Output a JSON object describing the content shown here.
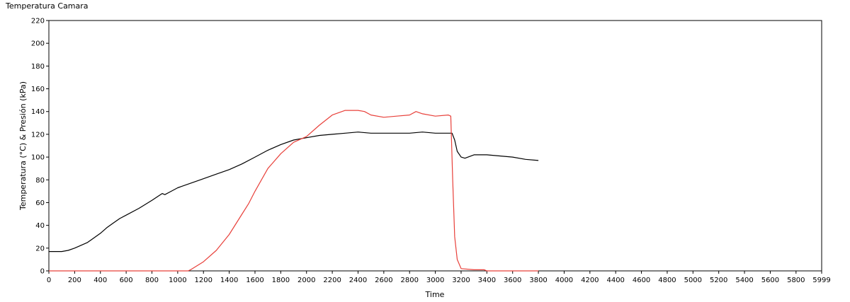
{
  "chart_data": {
    "type": "line",
    "title": "Temperatura Camara",
    "xlabel": "Time",
    "ylabel": "Temperatura (°C) & Presión (kPa)",
    "xlim": [
      0,
      5999
    ],
    "ylim": [
      0,
      220
    ],
    "x_ticks": [
      0,
      200,
      400,
      600,
      800,
      1000,
      1200,
      1400,
      1600,
      1800,
      2000,
      2200,
      2400,
      2600,
      2800,
      3000,
      3200,
      3400,
      3600,
      3800,
      4000,
      4200,
      4400,
      4600,
      4800,
      5000,
      5200,
      5400,
      5600,
      5800,
      5999
    ],
    "y_ticks": [
      0,
      20,
      40,
      60,
      80,
      100,
      120,
      140,
      160,
      180,
      200,
      220
    ],
    "grid": false,
    "legend": "none",
    "series": [
      {
        "color": "#000000",
        "points": [
          [
            0,
            17
          ],
          [
            100,
            17
          ],
          [
            150,
            18
          ],
          [
            200,
            20
          ],
          [
            300,
            25
          ],
          [
            400,
            33
          ],
          [
            450,
            38
          ],
          [
            500,
            42
          ],
          [
            550,
            46
          ],
          [
            600,
            49
          ],
          [
            700,
            55
          ],
          [
            800,
            62
          ],
          [
            880,
            68
          ],
          [
            900,
            67
          ],
          [
            950,
            70
          ],
          [
            1000,
            73
          ],
          [
            1100,
            77
          ],
          [
            1200,
            81
          ],
          [
            1300,
            85
          ],
          [
            1400,
            89
          ],
          [
            1500,
            94
          ],
          [
            1600,
            100
          ],
          [
            1700,
            106
          ],
          [
            1800,
            111
          ],
          [
            1900,
            115
          ],
          [
            2000,
            117
          ],
          [
            2100,
            119
          ],
          [
            2200,
            120
          ],
          [
            2300,
            121
          ],
          [
            2400,
            122
          ],
          [
            2500,
            121
          ],
          [
            2600,
            121
          ],
          [
            2800,
            121
          ],
          [
            2900,
            122
          ],
          [
            3000,
            121
          ],
          [
            3100,
            121
          ],
          [
            3130,
            121
          ],
          [
            3150,
            115
          ],
          [
            3170,
            105
          ],
          [
            3200,
            100
          ],
          [
            3230,
            99
          ],
          [
            3300,
            102
          ],
          [
            3400,
            102
          ],
          [
            3500,
            101
          ],
          [
            3600,
            100
          ],
          [
            3700,
            98
          ],
          [
            3800,
            97
          ]
        ]
      },
      {
        "color": "#e8403a",
        "points": [
          [
            0,
            0
          ],
          [
            1080,
            0
          ],
          [
            1100,
            1
          ],
          [
            1200,
            8
          ],
          [
            1300,
            18
          ],
          [
            1400,
            32
          ],
          [
            1500,
            50
          ],
          [
            1550,
            59
          ],
          [
            1600,
            70
          ],
          [
            1700,
            90
          ],
          [
            1800,
            103
          ],
          [
            1900,
            113
          ],
          [
            2000,
            118
          ],
          [
            2100,
            128
          ],
          [
            2200,
            137
          ],
          [
            2300,
            141
          ],
          [
            2400,
            141
          ],
          [
            2450,
            140
          ],
          [
            2500,
            137
          ],
          [
            2600,
            135
          ],
          [
            2700,
            136
          ],
          [
            2800,
            137
          ],
          [
            2850,
            140
          ],
          [
            2900,
            138
          ],
          [
            3000,
            136
          ],
          [
            3100,
            137
          ],
          [
            3120,
            136
          ],
          [
            3135,
            80
          ],
          [
            3150,
            30
          ],
          [
            3170,
            10
          ],
          [
            3200,
            2
          ],
          [
            3300,
            1
          ],
          [
            3380,
            1
          ],
          [
            3400,
            0
          ],
          [
            3800,
            0
          ]
        ]
      }
    ]
  }
}
